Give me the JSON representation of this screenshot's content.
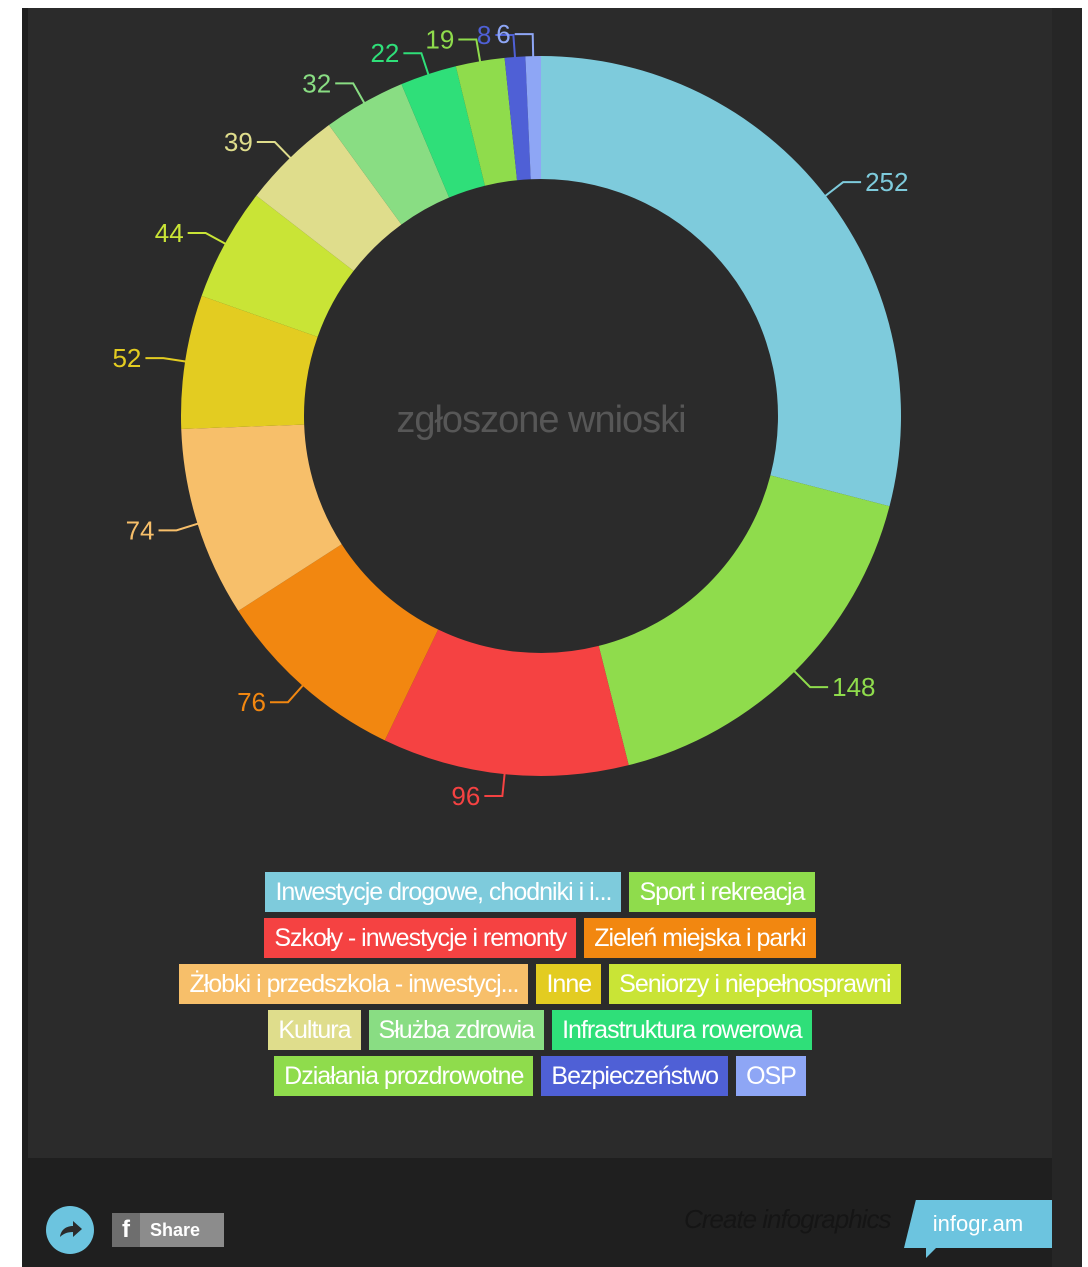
{
  "chart_data": {
    "type": "pie",
    "center_label": "zgłoszone wnioski",
    "series": [
      {
        "name": "Inwestycje drogowe, chodniki i i...",
        "value": 252,
        "color": "#7ecbdc"
      },
      {
        "name": "Sport i rekreacja",
        "value": 148,
        "color": "#8fdc4c"
      },
      {
        "name": "Szkoły - inwestycje i remonty",
        "value": 96,
        "color": "#f54242"
      },
      {
        "name": "Zieleń miejska i parki",
        "value": 76,
        "color": "#f28710"
      },
      {
        "name": "Żłobki i przedszkola - inwestycj...",
        "value": 74,
        "color": "#f7bf6a"
      },
      {
        "name": "Inne",
        "value": 52,
        "color": "#e3cc21"
      },
      {
        "name": "Seniorzy i niepełnosprawni",
        "value": 44,
        "color": "#c9e436"
      },
      {
        "name": "Kultura",
        "value": 39,
        "color": "#dfdd8c"
      },
      {
        "name": "Służba zdrowia",
        "value": 32,
        "color": "#89dd83"
      },
      {
        "name": "Infrastruktura rowerowa",
        "value": 22,
        "color": "#2fdf79"
      },
      {
        "name": "Działania prozdrowotne",
        "value": 19,
        "color": "#8fdc4c"
      },
      {
        "name": "Bezpieczeństwo",
        "value": 8,
        "color": "#4f60d6"
      },
      {
        "name": "OSP",
        "value": 6,
        "color": "#8ea6f5"
      }
    ],
    "legend_placement": "bottom"
  },
  "footer": {
    "share_label": "Share",
    "fb_letter": "f",
    "create_text": "Create infographics",
    "brand_text": "infogr.am"
  },
  "icons": {
    "share": "share-arrow-icon",
    "facebook": "facebook-icon"
  },
  "colors": {
    "background": "#2b2b2b",
    "accent": "#6cc4df"
  }
}
